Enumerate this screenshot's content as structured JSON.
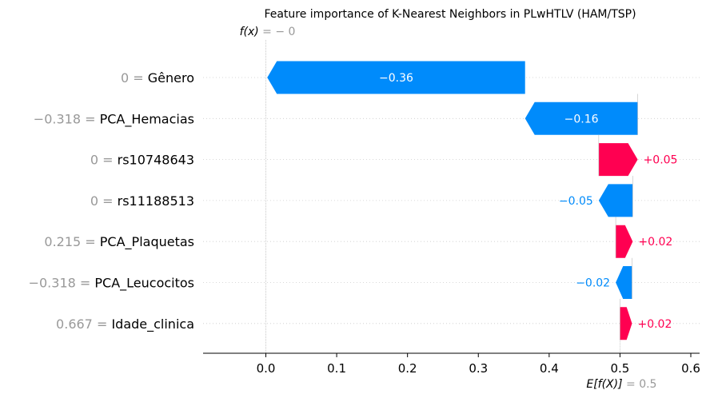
{
  "chart_data": {
    "type": "waterfall",
    "title": "Feature importance of K-Nearest Neighbors in PLwHTLV (HAM/TSP)",
    "fx": {
      "label": "f(x)",
      "value_text": "− 0"
    },
    "base": {
      "label": "E[f(X)]",
      "value_text": "0.5",
      "value": 0.5
    },
    "final_value": 0.0,
    "xlim": [
      -0.088,
      0.61
    ],
    "x_ticks": [
      0.0,
      0.1,
      0.2,
      0.3,
      0.4,
      0.5,
      0.6
    ],
    "x_tick_labels": [
      "0.0",
      "0.1",
      "0.2",
      "0.3",
      "0.4",
      "0.5",
      "0.6"
    ],
    "features": [
      {
        "value_text": "0",
        "name": "Gênero",
        "contribution": -0.364,
        "label": "−0.36"
      },
      {
        "value_text": "−0.318",
        "name": "PCA_Hemacias",
        "contribution": -0.159,
        "label": "−0.16"
      },
      {
        "value_text": "0",
        "name": "rs10748643",
        "contribution": 0.055,
        "label": "+0.05"
      },
      {
        "value_text": "0",
        "name": "rs11188513",
        "contribution": -0.048,
        "label": "−0.05"
      },
      {
        "value_text": "0.215",
        "name": "PCA_Plaquetas",
        "contribution": 0.024,
        "label": "+0.02"
      },
      {
        "value_text": "−0.318",
        "name": "PCA_Leucocitos",
        "contribution": -0.023,
        "label": "−0.02"
      },
      {
        "value_text": "0.667",
        "name": "Idade_clinica",
        "contribution": 0.017,
        "label": "+0.02"
      }
    ],
    "colors": {
      "positive": "#ff0051",
      "negative": "#008bfb",
      "grid": "#cccccc",
      "muted": "#999999"
    }
  }
}
